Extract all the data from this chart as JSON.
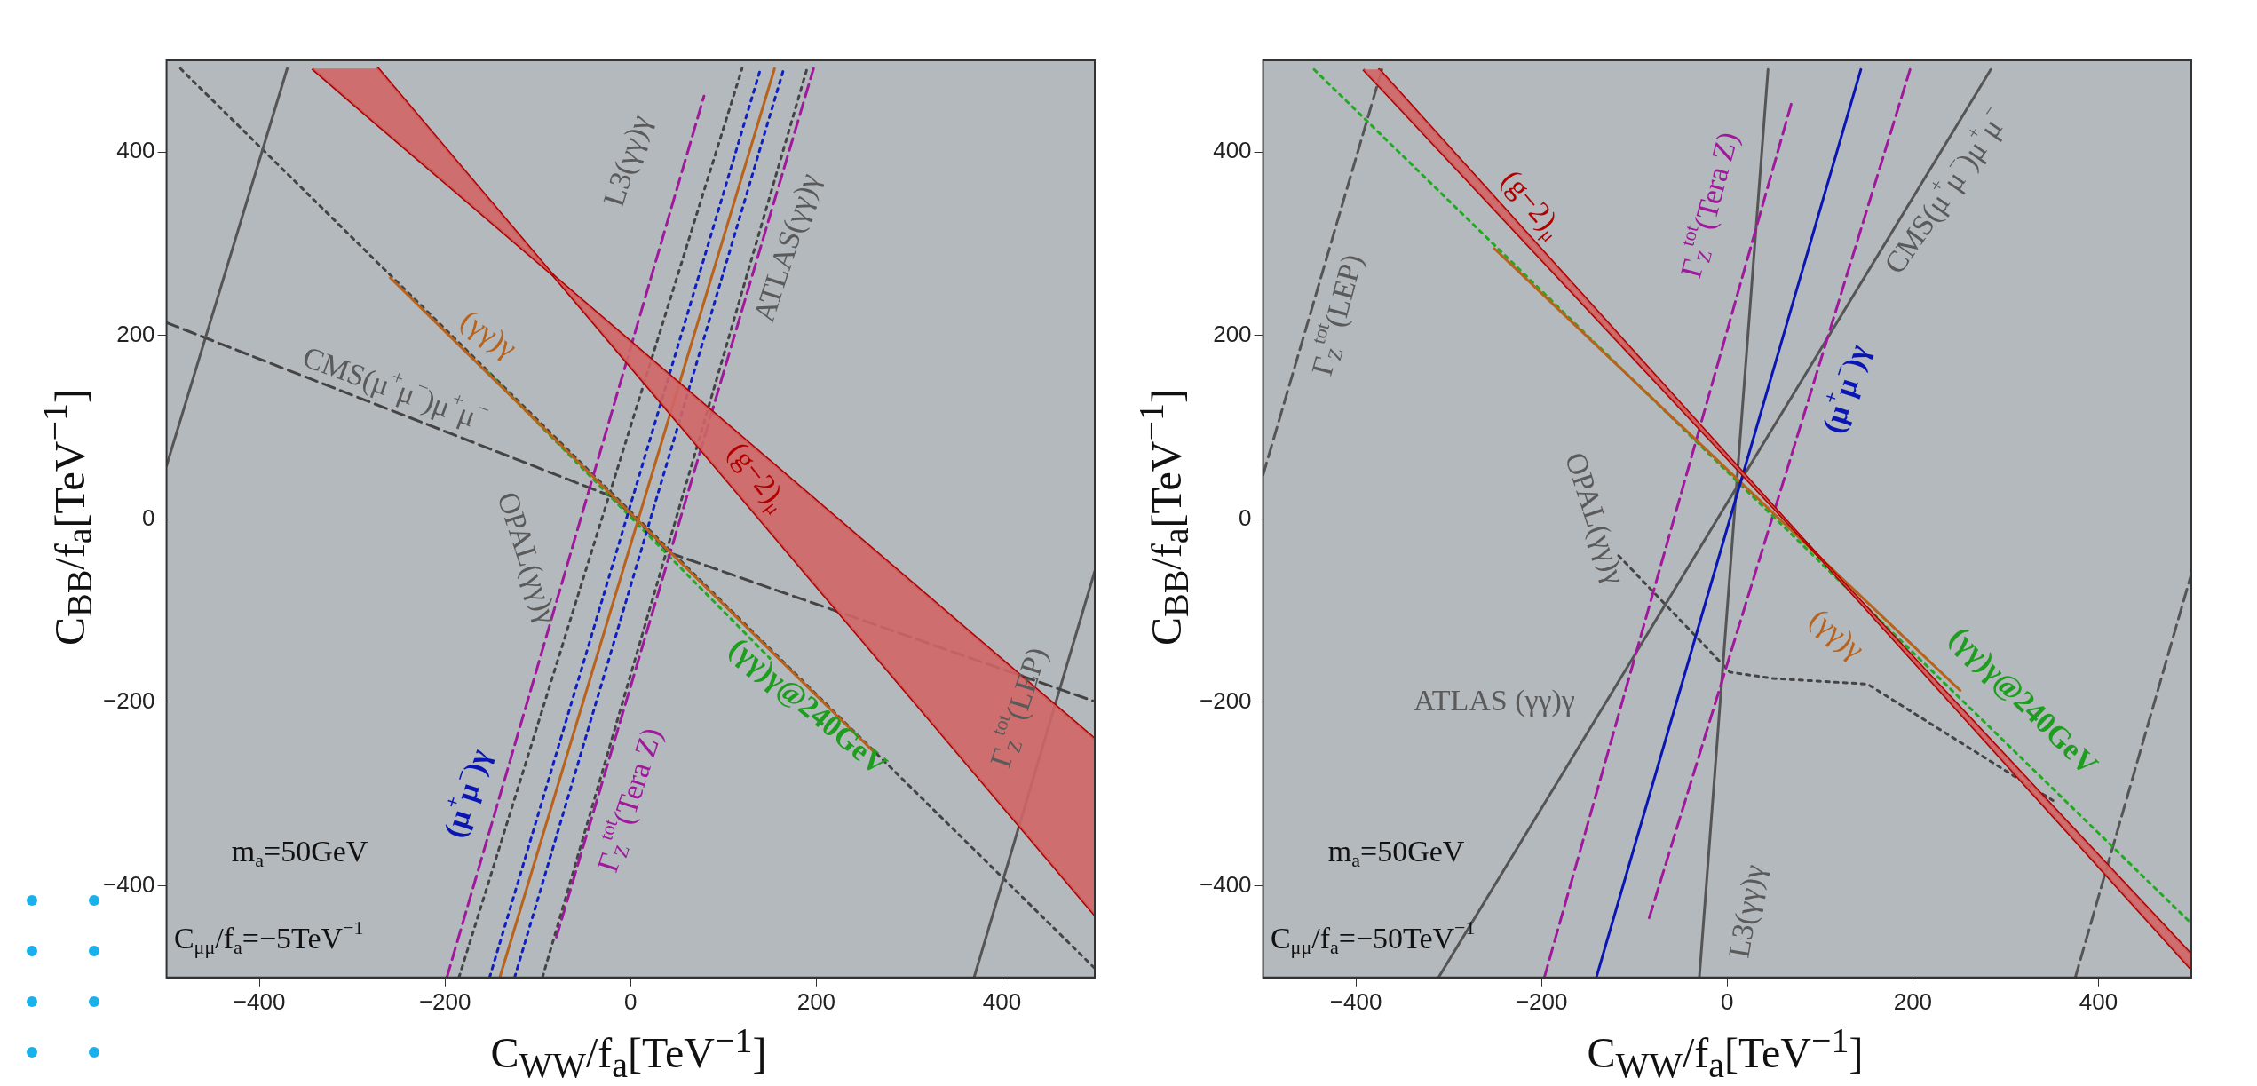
{
  "chart_data": [
    {
      "type": "line",
      "xlabel": "C$_{WW}$/f$_{a}$[TeV$^{−1}$]",
      "ylabel": "C$_{BB}$/f$_{a}$[TeV$^{−1}$]",
      "xlim": [
        -500,
        500
      ],
      "ylim": [
        -500,
        500
      ],
      "xticks": [
        -400,
        -200,
        0,
        200,
        400
      ],
      "yticks": [
        -400,
        -200,
        0,
        200,
        400
      ],
      "marker": "none",
      "series": [
        {
          "color": "#b00000",
          "line_style": "solid",
          "x": [
            -343,
            -272,
            500
          ],
          "values": [
            491,
            429,
            -240
          ],
          "upper": [
            491,
            429,
            -240
          ],
          "lower": [
            491,
            491,
            -432
          ]
        },
        {
          "color": "#b00000",
          "line_style": "solid",
          "x": [
            -272,
            500
          ],
          "values": [
            491,
            -432
          ]
        },
        {
          "color": "#b8621b",
          "line_style": "solid",
          "x": [
            -141,
            155
          ],
          "values": [
            -500,
            491
          ]
        },
        {
          "color": "#b8621b",
          "line_style": "solid",
          "x": [
            -259,
            261
          ],
          "values": [
            263,
            -253
          ]
        },
        {
          "color": "#1020c0",
          "line_style": "dotted",
          "x": [
            -152,
            140
          ],
          "values": [
            -500,
            491
          ]
        },
        {
          "color": "#1020c0",
          "line_style": "dotted",
          "x": [
            -125,
            165
          ],
          "values": [
            -500,
            491
          ]
        },
        {
          "color": "#444444",
          "line_style": "dotted",
          "x": [
            -185,
            120
          ],
          "values": [
            -500,
            491
          ]
        },
        {
          "color": "#444444",
          "line_style": "dotted",
          "x": [
            -95,
            190
          ],
          "values": [
            -500,
            491
          ]
        },
        {
          "color": "#a0189c",
          "line_style": "dashed",
          "x": [
            -198,
            79
          ],
          "values": [
            -500,
            461
          ]
        },
        {
          "color": "#a0189c",
          "line_style": "dashed",
          "x": [
            -80,
            197
          ],
          "values": [
            -456,
            491
          ]
        },
        {
          "color": "#22aa22",
          "line_style": "dotted",
          "x": [
            -154,
            150
          ],
          "values": [
            160,
            -152
          ]
        },
        {
          "color": "#444444",
          "line_style": "dashed",
          "x": [
            -500,
            -19,
            42,
            500
          ],
          "values": [
            214,
            24,
            -37,
            -199
          ]
        },
        {
          "color": "#555555",
          "line_style": "solid",
          "x": [
            -500,
            -370
          ],
          "values": [
            58,
            491
          ]
        },
        {
          "color": "#555555",
          "line_style": "solid",
          "x": [
            370,
            500
          ],
          "values": [
            -500,
            -57
          ]
        },
        {
          "color": "#444444",
          "line_style": "dotted",
          "x": [
            -485,
            500
          ],
          "values": [
            491,
            -490
          ]
        }
      ],
      "annotations": [
        "L3(γγ)γ",
        "ATLAS(γγ)γ",
        "(γγ)γ",
        "CMS(μ$^{+}$μ$^{−}$)μ$^{+}$μ$^{−}$",
        "(g−2)$_{μ}$",
        "OPAL(γγ)γ",
        "(γγ)γ@240GeV",
        "Γ$_{Z}$$^{tot}$(LEP)",
        "Γ$_{Z}$$^{tot}$(Tera Z)",
        "(μ$^{+}$μ$^{−}$)γ",
        "m$_{a}$=50GeV",
        "C$_{μμ}$/f$_{a}$=−5TeV$^{−1}$"
      ]
    },
    {
      "type": "line",
      "xlabel": "C$_{WW}$/f$_{a}$[TeV$^{−1}$]",
      "ylabel": "C$_{BB}$/f$_{a}$[TeV$^{−1}$]",
      "xlim": [
        -500,
        500
      ],
      "ylim": [
        -500,
        500
      ],
      "xticks": [
        -400,
        -200,
        0,
        200,
        400
      ],
      "yticks": [
        -400,
        -200,
        0,
        200,
        400
      ],
      "marker": "none",
      "series": [
        {
          "color": "#b00000",
          "line_style": "solid",
          "x": [
            -392,
            -375,
            500
          ],
          "values": [
            490,
            472,
            -475
          ],
          "upper": [
            490,
            472,
            -475
          ],
          "lower": [
            490,
            490,
            -491
          ]
        },
        {
          "color": "#b00000",
          "line_style": "solid",
          "x": [
            -375,
            500
          ],
          "values": [
            490,
            -491
          ]
        },
        {
          "color": "#0a16b4",
          "line_style": "solid",
          "x": [
            -141,
            144
          ],
          "values": [
            -500,
            490
          ]
        },
        {
          "color": "#b8621b",
          "line_style": "solid",
          "x": [
            -251,
            251
          ],
          "values": [
            295,
            -187
          ]
        },
        {
          "color": "#22aa22",
          "line_style": "dotted",
          "x": [
            -445,
            500
          ],
          "values": [
            490,
            -441
          ]
        },
        {
          "color": "#a0189c",
          "line_style": "dashed",
          "x": [
            -197,
            70
          ],
          "values": [
            -500,
            456
          ]
        },
        {
          "color": "#a0189c",
          "line_style": "dashed",
          "x": [
            -84,
            197
          ],
          "values": [
            -435,
            490
          ]
        },
        {
          "color": "#555555",
          "line_style": "solid",
          "x": [
            -30,
            44
          ],
          "values": [
            -500,
            490
          ]
        },
        {
          "color": "#555555",
          "line_style": "solid",
          "x": [
            -311,
            284
          ],
          "values": [
            -500,
            490
          ]
        },
        {
          "color": "#555555",
          "line_style": "dashed",
          "x": [
            -500,
            -372
          ],
          "values": [
            48,
            490
          ]
        },
        {
          "color": "#555555",
          "line_style": "dashed",
          "x": [
            375,
            500
          ],
          "values": [
            -500,
            -60
          ]
        },
        {
          "color": "#444444",
          "line_style": "dotted",
          "x": [
            -117,
            3,
            50,
            151,
            351
          ],
          "values": [
            -40,
            -167,
            -174,
            -180,
            -307
          ]
        }
      ],
      "annotations": [
        "(g−2)$_{μ}$",
        "Γ$_{Z}$$^{tot}$(Tera Z)",
        "CMS(μ$^{+}$μ$^{−}$)μ$^{+}$μ$^{−}$",
        "Γ$_{Z}$$^{tot}$(LEP)",
        "(μ$^{+}$μ$^{−}$)γ",
        "OPAL(γγ)γ",
        "(γγ)γ",
        "(γγ)γ@240GeV",
        "ATLAS (γγ)γ",
        "L3(γγ)γ",
        "m$_{a}$=50GeV",
        "C$_{μμ}$/f$_{a}$=−50TeV$^{−1}$"
      ]
    }
  ]
}
